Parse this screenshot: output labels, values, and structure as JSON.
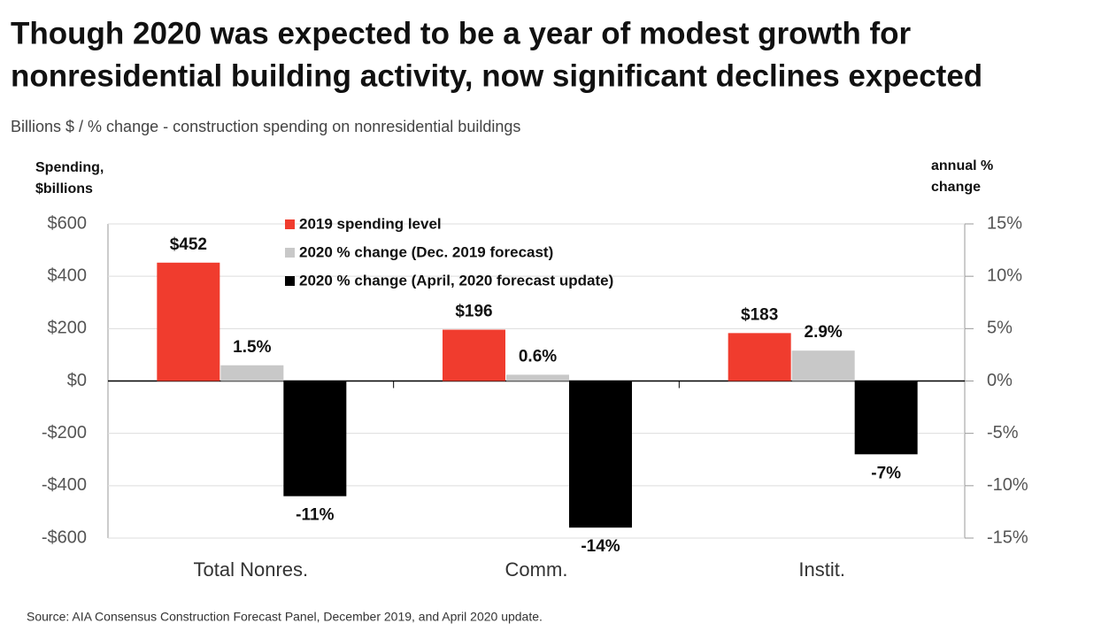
{
  "chart_data": {
    "type": "bar",
    "title": [
      "Though 2020 was expected to be a year of modest growth for",
      "nonresidential building activity, now significant declines expected"
    ],
    "subtitle": "Billions $ / % change - construction spending on nonresidential buildings",
    "y_label": [
      "Spending,",
      "$billions"
    ],
    "y2_label": [
      "annual %",
      "change"
    ],
    "source": "Source:  AIA Consensus Construction Forecast Panel, December 2019, and April 2020 update.",
    "categories": [
      "Total Nonres.",
      "Comm.",
      "Instit."
    ],
    "series": [
      {
        "name": "2019 spending level",
        "color": "#f03c2e",
        "values": [
          452,
          196,
          183
        ],
        "value_labels": [
          "$452",
          "$196",
          "$183"
        ]
      },
      {
        "name": "2020 % change (Dec. 2019 forecast)",
        "color": "#c8c8c8",
        "axis": "y2",
        "values": [
          1.5,
          0.6,
          2.9
        ],
        "value_labels": [
          "1.5%",
          "0.6%",
          "2.9%"
        ]
      },
      {
        "name": "2020 % change (April, 2020 forecast update)",
        "color": "#000000",
        "axis": "y2",
        "values": [
          -11,
          -14,
          -7
        ],
        "value_labels": [
          "-11%",
          "-14%",
          "-7%"
        ]
      }
    ],
    "ylim": [
      -600,
      600
    ],
    "yticks": [
      {
        "value": -600,
        "label": "-$600"
      },
      {
        "value": -400,
        "label": "-$400"
      },
      {
        "value": -200,
        "label": "-$200"
      },
      {
        "value": 0,
        "label": "$0"
      },
      {
        "value": 200,
        "label": "$200"
      },
      {
        "value": 400,
        "label": "$400"
      },
      {
        "value": 600,
        "label": "$600"
      }
    ],
    "y2lim": [
      -15,
      15
    ],
    "y2ticks": [
      {
        "value": -15,
        "label": "-15%"
      },
      {
        "value": -10,
        "label": "-10%"
      },
      {
        "value": -5,
        "label": "-5%"
      },
      {
        "value": 0,
        "label": "0%"
      },
      {
        "value": 5,
        "label": "5%"
      },
      {
        "value": 10,
        "label": "10%"
      },
      {
        "value": 15,
        "label": "15%"
      }
    ],
    "grid": true,
    "legend": "top"
  }
}
